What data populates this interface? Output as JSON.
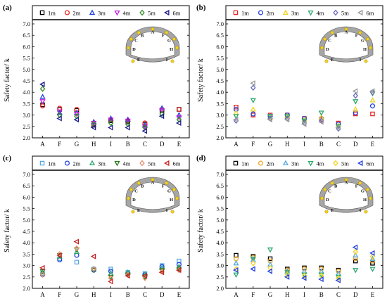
{
  "chart_data": [
    {
      "type": "scatter",
      "panel_label": "(a)",
      "ylabel": "Safety factor/ k",
      "ylim": [
        2.0,
        7.0
      ],
      "yticks": [
        "2.0",
        "2.5",
        "3.0",
        "3.5",
        "4.0",
        "4.5",
        "5.0",
        "5.5",
        "6.0",
        "6.5",
        "7.0"
      ],
      "categories": [
        "A",
        "F",
        "G",
        "H",
        "I",
        "B",
        "C",
        "D",
        "E"
      ],
      "series": [
        {
          "name": "1m",
          "marker": "square",
          "color": "#000000",
          "values": [
            3.45,
            3.25,
            3.2,
            2.55,
            2.75,
            2.7,
            2.6,
            3.2,
            3.25
          ]
        },
        {
          "name": "2m",
          "marker": "circle",
          "color": "#e8231f",
          "values": [
            3.4,
            3.3,
            3.25,
            2.6,
            2.8,
            2.75,
            2.65,
            3.25,
            3.25
          ]
        },
        {
          "name": "3m",
          "marker": "triangle-up",
          "color": "#1f3fe0",
          "values": [
            3.8,
            3.1,
            3.1,
            2.7,
            2.85,
            2.8,
            2.55,
            3.3,
            3.0
          ]
        },
        {
          "name": "4m",
          "marker": "triangle-down",
          "color": "#c81ed8",
          "values": [
            3.6,
            3.15,
            3.05,
            2.65,
            2.8,
            2.75,
            2.5,
            3.2,
            2.9
          ]
        },
        {
          "name": "5m",
          "marker": "diamond",
          "color": "#2e8b20",
          "values": [
            4.15,
            3.0,
            2.95,
            2.6,
            2.65,
            2.6,
            2.45,
            3.05,
            2.8
          ]
        },
        {
          "name": "6m",
          "marker": "triangle-left",
          "color": "#1a1a8a",
          "values": [
            4.35,
            2.85,
            2.8,
            2.45,
            2.45,
            2.45,
            2.3,
            2.95,
            2.65
          ]
        }
      ],
      "inset_labels": [
        "A",
        "F",
        "B",
        "G",
        "C",
        "H",
        "D",
        "I",
        "E"
      ]
    },
    {
      "type": "scatter",
      "panel_label": "(b)",
      "ylabel": "Safety factor/ k",
      "ylim": [
        2.0,
        7.0
      ],
      "yticks": [
        "2.0",
        "2.5",
        "3.0",
        "3.5",
        "4.0",
        "4.5",
        "5.0",
        "5.5",
        "6.0",
        "6.5",
        "7.0"
      ],
      "categories": [
        "A",
        "F",
        "G",
        "H",
        "I",
        "B",
        "C",
        "D",
        "E"
      ],
      "series": [
        {
          "name": "1m",
          "marker": "square",
          "color": "#e8231f",
          "values": [
            3.35,
            3.0,
            3.0,
            3.0,
            2.85,
            2.8,
            2.65,
            3.05,
            3.05
          ]
        },
        {
          "name": "2m",
          "marker": "circle",
          "color": "#1f3fe0",
          "values": [
            3.25,
            3.05,
            2.95,
            3.0,
            2.85,
            2.85,
            2.6,
            3.1,
            3.4
          ]
        },
        {
          "name": "3m",
          "marker": "triangle-up",
          "color": "#f2d21f",
          "values": [
            3.1,
            3.25,
            2.9,
            2.95,
            2.8,
            2.9,
            2.55,
            3.25,
            3.65
          ]
        },
        {
          "name": "4m",
          "marker": "triangle-down",
          "color": "#2aa86a",
          "values": [
            2.95,
            3.65,
            2.95,
            2.95,
            2.75,
            3.1,
            2.5,
            3.6,
            3.95
          ]
        },
        {
          "name": "5m",
          "marker": "diamond",
          "color": "#6a6ac0",
          "values": [
            2.75,
            4.2,
            2.85,
            2.85,
            2.65,
            2.75,
            2.4,
            3.85,
            4.0
          ]
        },
        {
          "name": "6m",
          "marker": "triangle-left",
          "color": "#9a9a9a",
          "values": [
            2.8,
            4.4,
            2.8,
            2.8,
            2.6,
            2.7,
            2.45,
            4.05,
            4.05
          ]
        }
      ],
      "inset_labels": [
        "A",
        "F",
        "B",
        "G",
        "C",
        "H",
        "D",
        "I",
        "E"
      ]
    },
    {
      "type": "scatter",
      "panel_label": "(c)",
      "ylabel": "Safety factor/ k",
      "ylim": [
        2.0,
        7.0
      ],
      "yticks": [
        "2.0",
        "2.5",
        "3.0",
        "3.5",
        "4.0",
        "4.5",
        "5.0",
        "5.5",
        "6.0",
        "6.5",
        "7.0"
      ],
      "categories": [
        "A",
        "F",
        "G",
        "H",
        "I",
        "B",
        "C",
        "D",
        "E"
      ],
      "series": [
        {
          "name": "1m",
          "marker": "square",
          "color": "#56a8e0",
          "values": [
            2.65,
            3.3,
            3.15,
            2.85,
            2.85,
            2.7,
            2.65,
            3.0,
            3.2
          ]
        },
        {
          "name": "2m",
          "marker": "circle",
          "color": "#1f3fe0",
          "values": [
            2.6,
            3.25,
            3.45,
            2.8,
            2.75,
            2.65,
            2.6,
            2.95,
            3.05
          ]
        },
        {
          "name": "3m",
          "marker": "triangle-up",
          "color": "#2aa86a",
          "values": [
            2.7,
            3.4,
            3.6,
            2.85,
            2.65,
            2.7,
            2.6,
            2.9,
            2.95
          ]
        },
        {
          "name": "4m",
          "marker": "triangle-down",
          "color": "#2a7a1f",
          "values": [
            2.75,
            3.45,
            3.7,
            2.8,
            2.5,
            2.6,
            2.5,
            2.8,
            2.85
          ]
        },
        {
          "name": "5m",
          "marker": "diamond",
          "color": "#e88a6a",
          "values": [
            2.6,
            3.5,
            3.75,
            2.85,
            2.45,
            2.6,
            2.45,
            2.75,
            2.8
          ]
        },
        {
          "name": "6m",
          "marker": "triangle-left",
          "color": "#c82020",
          "values": [
            2.9,
            3.45,
            4.05,
            3.4,
            2.3,
            2.55,
            2.55,
            2.7,
            2.8
          ]
        }
      ],
      "inset_labels": [
        "A",
        "F",
        "B",
        "G",
        "C",
        "H",
        "D",
        "I",
        "E"
      ]
    },
    {
      "type": "scatter",
      "panel_label": "(d)",
      "ylabel": "Safety factor/ k",
      "ylim": [
        2.0,
        7.0
      ],
      "yticks": [
        "2.0",
        "2.5",
        "3.0",
        "3.5",
        "4.0",
        "4.5",
        "5.0",
        "5.5",
        "6.0",
        "6.5",
        "7.0"
      ],
      "categories": [
        "A",
        "F",
        "G",
        "H",
        "I",
        "B",
        "C",
        "D",
        "E"
      ],
      "series": [
        {
          "name": "1m",
          "marker": "square",
          "color": "#000000",
          "values": [
            3.45,
            3.4,
            3.3,
            2.85,
            2.9,
            2.9,
            2.8,
            3.2,
            3.1
          ]
        },
        {
          "name": "2m",
          "marker": "circle",
          "color": "#f2a51f",
          "values": [
            3.3,
            3.35,
            3.2,
            2.8,
            2.85,
            2.85,
            2.75,
            3.3,
            3.2
          ]
        },
        {
          "name": "3m",
          "marker": "triangle-up",
          "color": "#56a8e0",
          "values": [
            3.1,
            3.25,
            3.05,
            2.75,
            2.75,
            2.75,
            2.65,
            3.45,
            3.3
          ]
        },
        {
          "name": "4m",
          "marker": "triangle-down",
          "color": "#2aa86a",
          "values": [
            2.6,
            3.3,
            3.7,
            2.7,
            2.6,
            2.6,
            2.5,
            2.8,
            2.85
          ]
        },
        {
          "name": "5m",
          "marker": "diamond",
          "color": "#f2d21f",
          "values": [
            2.85,
            3.1,
            2.9,
            2.6,
            2.55,
            2.55,
            2.45,
            3.6,
            3.4
          ]
        },
        {
          "name": "6m",
          "marker": "triangle-left",
          "color": "#1f3fe0",
          "values": [
            2.8,
            2.85,
            2.75,
            2.5,
            2.45,
            2.4,
            2.35,
            3.8,
            3.55
          ]
        }
      ],
      "inset_labels": [
        "A",
        "F",
        "B",
        "G",
        "C",
        "H",
        "D",
        "I",
        "E"
      ]
    }
  ]
}
